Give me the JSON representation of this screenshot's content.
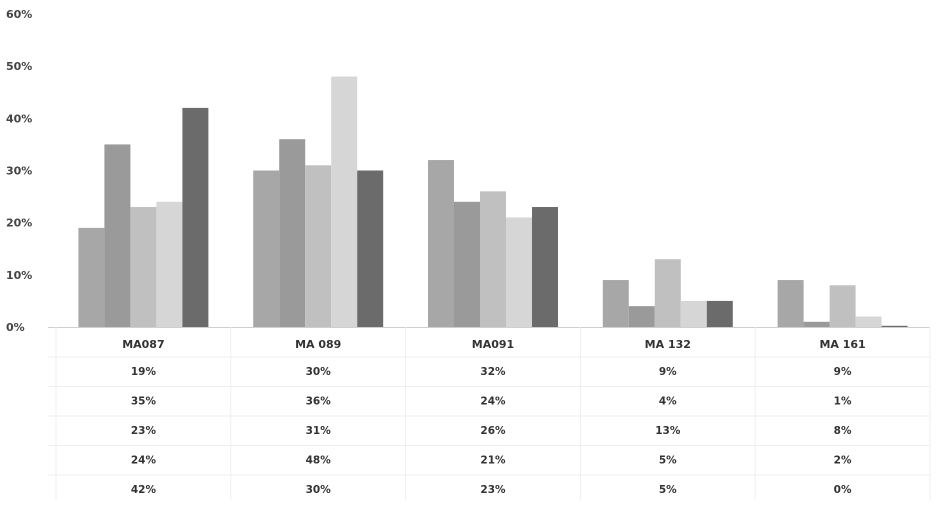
{
  "chart_data": {
    "type": "bar",
    "categories": [
      "MA087",
      "MA 089",
      "MA091",
      "MA 132",
      "MA 161"
    ],
    "series": [
      {
        "values": [
          19,
          30,
          32,
          9,
          9
        ],
        "color": "#a7a7a7"
      },
      {
        "values": [
          35,
          36,
          24,
          4,
          1
        ],
        "color": "#9a9a9a"
      },
      {
        "values": [
          23,
          31,
          26,
          13,
          8
        ],
        "color": "#c0c0c0"
      },
      {
        "values": [
          24,
          48,
          21,
          5,
          2
        ],
        "color": "#d6d6d6"
      },
      {
        "values": [
          42,
          30,
          23,
          5,
          0
        ],
        "color": "#6b6b6b"
      }
    ],
    "ylim": [
      0,
      60
    ],
    "yticks": [
      "0%",
      "10%",
      "20%",
      "30%",
      "40%",
      "50%",
      "60%"
    ],
    "ytick_values": [
      0,
      10,
      20,
      30,
      40,
      50,
      60
    ],
    "grid": false,
    "legend": "none",
    "data_table": {
      "rows": [
        [
          "19%",
          "30%",
          "32%",
          "9%",
          "9%"
        ],
        [
          "35%",
          "36%",
          "24%",
          "4%",
          "1%"
        ],
        [
          "23%",
          "31%",
          "26%",
          "13%",
          "8%"
        ],
        [
          "24%",
          "48%",
          "21%",
          "5%",
          "2%"
        ],
        [
          "42%",
          "30%",
          "23%",
          "5%",
          "0%"
        ]
      ]
    }
  }
}
